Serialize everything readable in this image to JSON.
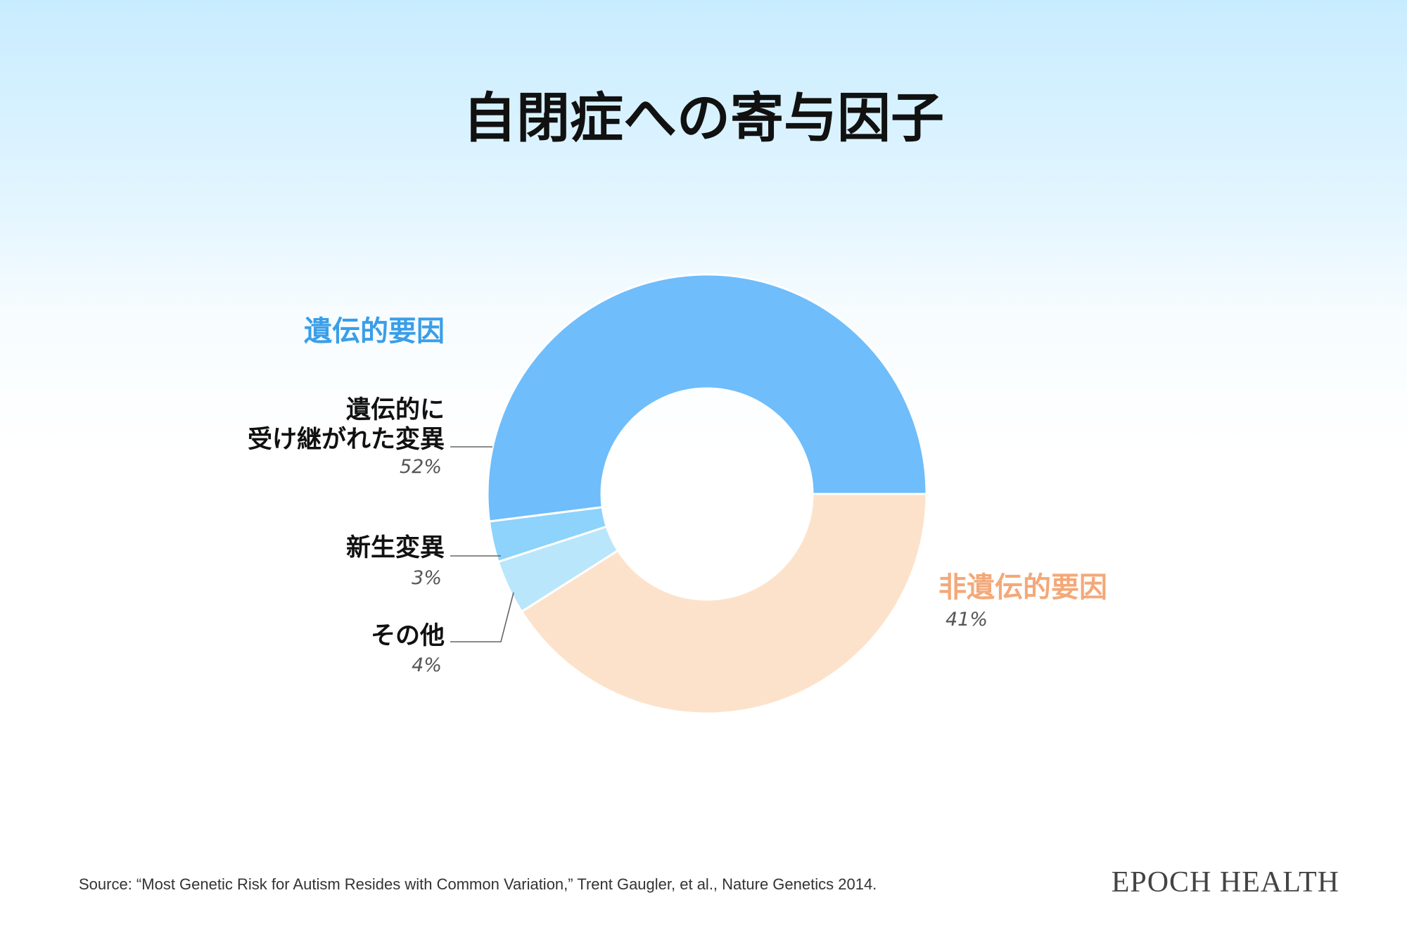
{
  "colors": {
    "genetic_group": "#3a9ee8",
    "nongenetic_group": "#f4a878"
  },
  "chart_data": {
    "type": "pie",
    "title": "自閉症への寄与因子",
    "groups": [
      {
        "label": "遺伝的要因",
        "color": "#3a9ee8",
        "members": [
          "inherited",
          "denovo",
          "other"
        ]
      },
      {
        "label": "非遺伝的要因",
        "color": "#f4a878",
        "members": [
          "nongenetic"
        ]
      }
    ],
    "slices": [
      {
        "id": "inherited",
        "label_line1": "遺伝的に",
        "label_line2": "受け継がれた変異",
        "value": 52,
        "pct_label": "52%",
        "color": "#6fbdfb"
      },
      {
        "id": "denovo",
        "label": "新生変異",
        "value": 3,
        "pct_label": "3%",
        "color": "#8dd3fb"
      },
      {
        "id": "other",
        "label": "その他",
        "value": 4,
        "pct_label": "4%",
        "color": "#b9e6fb"
      },
      {
        "id": "nongenetic",
        "label": "非遺伝的要因",
        "value": 41,
        "pct_label": "41%",
        "color": "#fde2cb"
      }
    ]
  },
  "footer": {
    "source": "Source: “Most Genetic Risk for Autism Resides with Common Variation,” Trent Gaugler, et al., Nature Genetics 2014.",
    "brand": "EPOCH HEALTH"
  }
}
